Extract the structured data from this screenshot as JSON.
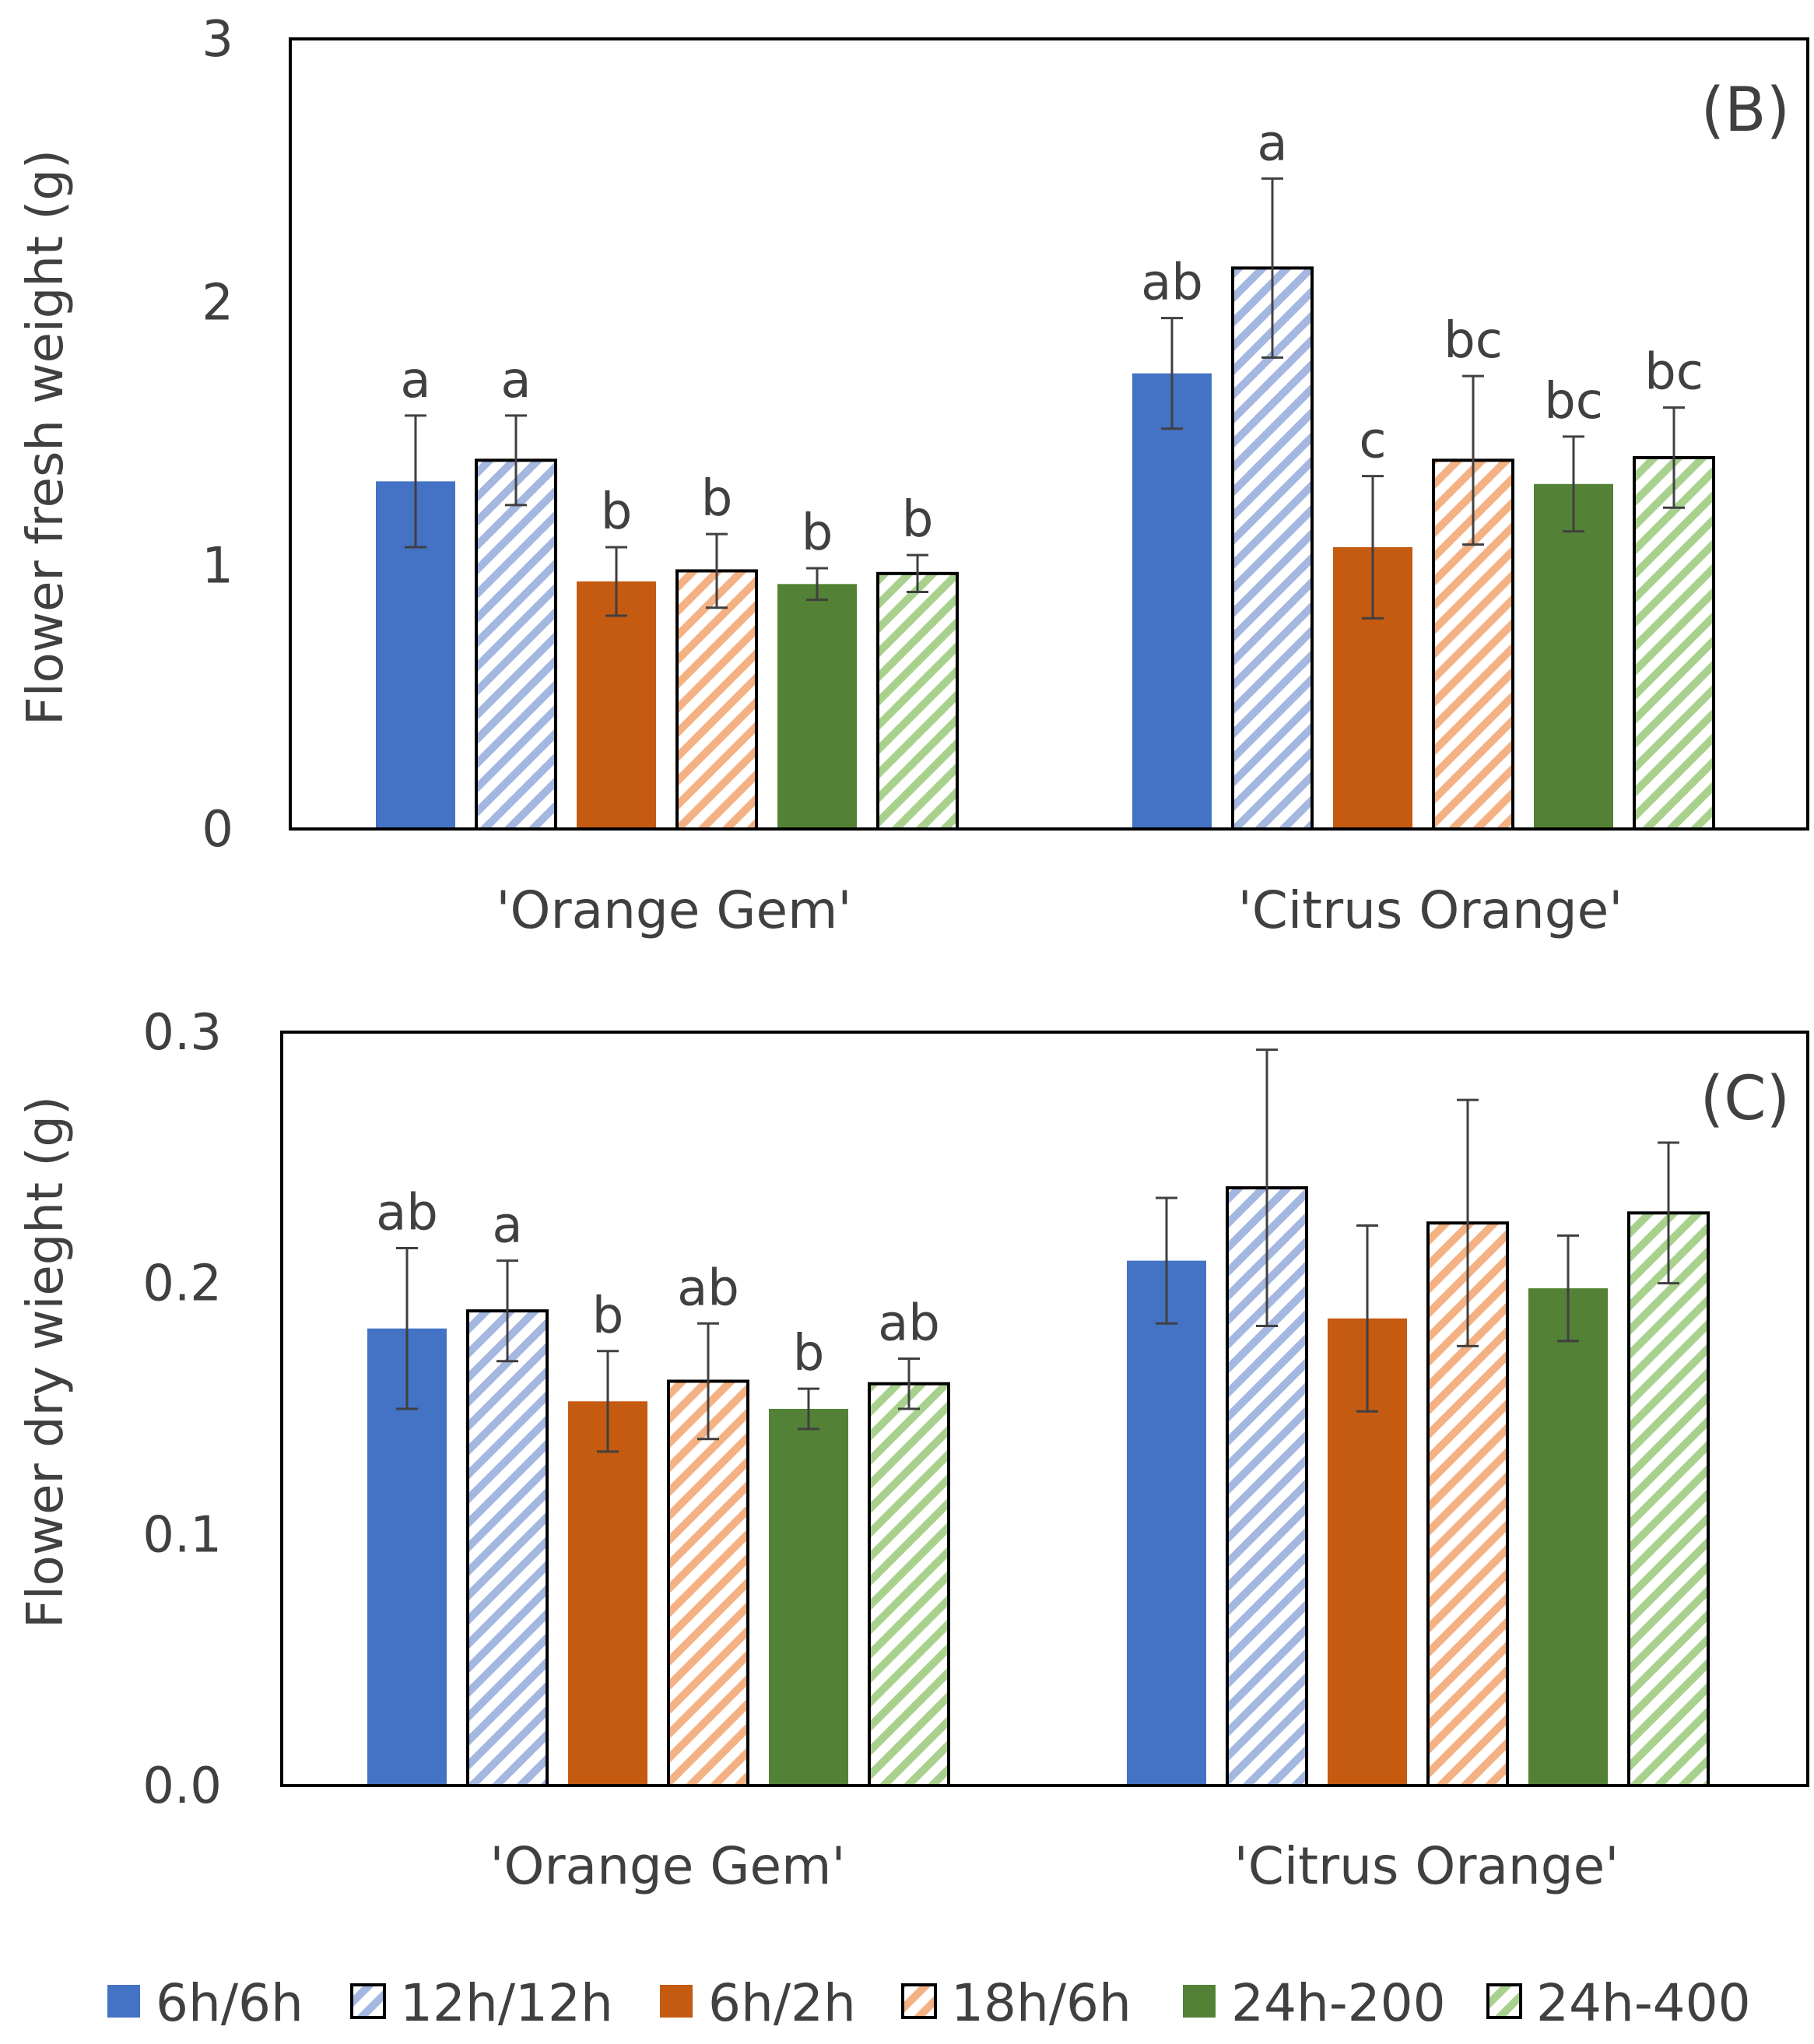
{
  "chart_data": [
    {
      "type": "bar",
      "panel": "(B)",
      "ylabel": "Flower fresh weight (g)",
      "ylim": [
        0,
        3
      ],
      "yticks": [
        "0",
        "1",
        "2",
        "3"
      ],
      "ytick_values": [
        0,
        1,
        2,
        3
      ],
      "categories": [
        "'Orange Gem'",
        "'Citrus Orange'"
      ],
      "series": [
        {
          "name": "6h/6h",
          "values": [
            1.32,
            1.73
          ],
          "errors": [
            0.25,
            0.21
          ],
          "letters": [
            "a",
            "ab"
          ]
        },
        {
          "name": "12h/12h",
          "values": [
            1.4,
            2.13
          ],
          "errors": [
            0.17,
            0.34
          ],
          "letters": [
            "a",
            "a"
          ]
        },
        {
          "name": "6h/2h",
          "values": [
            0.94,
            1.07
          ],
          "errors": [
            0.13,
            0.27
          ],
          "letters": [
            "b",
            "c"
          ]
        },
        {
          "name": "18h/6h",
          "values": [
            0.98,
            1.4
          ],
          "errors": [
            0.14,
            0.32
          ],
          "letters": [
            "b",
            "bc"
          ]
        },
        {
          "name": "24h-200",
          "values": [
            0.93,
            1.31
          ],
          "errors": [
            0.06,
            0.18
          ],
          "letters": [
            "b",
            "bc"
          ]
        },
        {
          "name": "24h-400",
          "values": [
            0.97,
            1.41
          ],
          "errors": [
            0.07,
            0.19
          ],
          "letters": [
            "b",
            "bc"
          ]
        }
      ]
    },
    {
      "type": "bar",
      "panel": "(C)",
      "ylabel": "Flower dry wieght (g)",
      "ylim": [
        0,
        0.3
      ],
      "yticks": [
        "0.0",
        "0.1",
        "0.2",
        "0.3"
      ],
      "ytick_values": [
        0,
        0.1,
        0.2,
        0.3
      ],
      "categories": [
        "'Orange Gem'",
        "'Citrus Orange'"
      ],
      "series": [
        {
          "name": "6h/6h",
          "values": [
            0.182,
            0.209
          ],
          "errors": [
            0.032,
            0.025
          ],
          "letters": [
            "ab",
            ""
          ]
        },
        {
          "name": "12h/12h",
          "values": [
            0.189,
            0.238
          ],
          "errors": [
            0.02,
            0.055
          ],
          "letters": [
            "a",
            ""
          ]
        },
        {
          "name": "6h/2h",
          "values": [
            0.153,
            0.186
          ],
          "errors": [
            0.02,
            0.037
          ],
          "letters": [
            "b",
            ""
          ]
        },
        {
          "name": "18h/6h",
          "values": [
            0.161,
            0.224
          ],
          "errors": [
            0.023,
            0.049
          ],
          "letters": [
            "ab",
            ""
          ]
        },
        {
          "name": "24h-200",
          "values": [
            0.15,
            0.198
          ],
          "errors": [
            0.008,
            0.021
          ],
          "letters": [
            "b",
            ""
          ]
        },
        {
          "name": "24h-400",
          "values": [
            0.16,
            0.228
          ],
          "errors": [
            0.01,
            0.028
          ],
          "letters": [
            "ab",
            ""
          ]
        }
      ]
    }
  ],
  "legend": [
    {
      "name": "6h/6h",
      "color": "#4472c4",
      "pattern": "solid"
    },
    {
      "name": "12h/12h",
      "color": "#4472c4",
      "pattern": "hatch"
    },
    {
      "name": "6h/2h",
      "color": "#c55a11",
      "pattern": "solid"
    },
    {
      "name": "18h/6h",
      "color": "#c55a11",
      "pattern": "hatch"
    },
    {
      "name": "24h-200",
      "color": "#538135",
      "pattern": "solid"
    },
    {
      "name": "24h-400",
      "color": "#538135",
      "pattern": "hatch"
    }
  ],
  "colors": {
    "blue": "#4472c4",
    "blue_hatch": "#a4b7e0",
    "orange": "#c55a11",
    "orange_hatch": "#f4b183",
    "green": "#538135",
    "green_hatch": "#a9d18e",
    "axis": "#000000",
    "text": "#404040",
    "error": "#404040"
  }
}
